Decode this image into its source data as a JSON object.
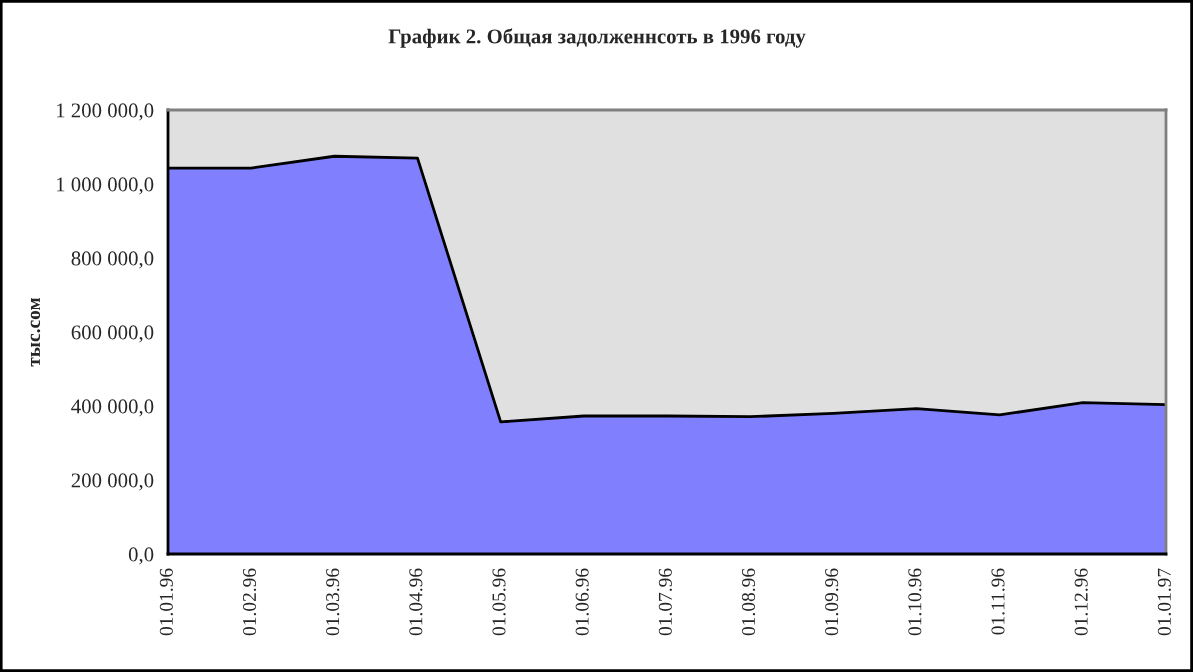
{
  "chart_data": {
    "type": "area",
    "title": "График 2. Общая задолженнсоть в 1996 году",
    "ylabel": "тыс.сом",
    "categories": [
      "01.01.96",
      "01.02.96",
      "01.03.96",
      "01.04.96",
      "01.05.96",
      "01.06.96",
      "01.07.96",
      "01.08.96",
      "01.09.96",
      "01.10.96",
      "01.11.96",
      "01.12.96",
      "01.01.97"
    ],
    "series": [
      {
        "color": "#8080ff",
        "values": [
          1043000,
          1043000,
          1075000,
          1070000,
          357000,
          373000,
          373000,
          371000,
          380000,
          393000,
          376000,
          409000,
          404000
        ]
      }
    ],
    "ylim": [
      0,
      1200000
    ],
    "yticks": [
      {
        "value": 0,
        "label": "0,0"
      },
      {
        "value": 200000,
        "label": "200 000,0"
      },
      {
        "value": 400000,
        "label": "400 000,0"
      },
      {
        "value": 600000,
        "label": "600 000,0"
      },
      {
        "value": 800000,
        "label": "800 000,0"
      },
      {
        "value": 1000000,
        "label": "1 000 000,0"
      },
      {
        "value": 1200000,
        "label": "1 200 000,0"
      }
    ],
    "grid": false
  }
}
